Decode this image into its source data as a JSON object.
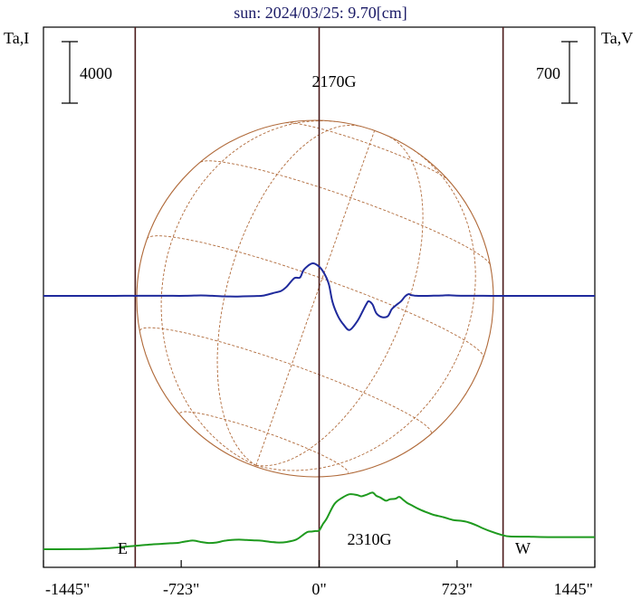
{
  "chart_data": {
    "type": "line",
    "title": "sun: 2024/03/25: 9.70[cm]",
    "left_axis_label": "Ta,I",
    "right_axis_label": "Ta,V",
    "left_scale_bar": "4000",
    "right_scale_bar": "700",
    "x_ticks": [
      {
        "value": -1445,
        "label": "-1445\""
      },
      {
        "value": -723,
        "label": "-723\""
      },
      {
        "value": 0,
        "label": "0\""
      },
      {
        "value": 723,
        "label": "723\""
      },
      {
        "value": 1445,
        "label": "1445\""
      }
    ],
    "xlim": [
      -1445,
      1445
    ],
    "limb_markers": [
      -964,
      0,
      964
    ],
    "east_label": "E",
    "west_label": "W",
    "annotations": [
      "2170G",
      "2310G"
    ],
    "grid": "heliographic disk (latitude/longitude lines)",
    "series": [
      {
        "key": "stokes_i",
        "color": "#1f2a9c",
        "x": [
          -1445,
          -1100,
          -1000,
          -950,
          -900,
          -800,
          -700,
          -620,
          -560,
          -500,
          -440,
          -400,
          -340,
          -300,
          -270,
          -230,
          -200,
          -170,
          -130,
          -100,
          -80,
          -40,
          -10,
          20,
          50,
          70,
          100,
          130,
          160,
          200,
          230,
          250,
          260,
          280,
          300,
          330,
          360,
          380,
          400,
          430,
          450,
          470,
          480,
          500,
          520,
          540,
          560,
          600,
          640,
          680,
          720,
          780,
          860,
          960,
          1000,
          1100,
          1445
        ],
        "y": [
          0,
          0,
          5,
          3,
          6,
          8,
          5,
          30,
          3,
          -30,
          -44,
          -30,
          -10,
          5,
          80,
          220,
          320,
          600,
          1150,
          1200,
          1700,
          2100,
          2000,
          1600,
          800,
          -400,
          -1350,
          -1900,
          -2220,
          -1650,
          -950,
          -480,
          -350,
          -560,
          -1130,
          -1380,
          -1320,
          -870,
          -640,
          -340,
          -40,
          120,
          60,
          20,
          0,
          -2,
          0,
          10,
          25,
          40,
          12,
          8,
          8,
          0,
          0,
          0,
          0
        ]
      },
      {
        "key": "stokes_v",
        "color": "#1e9a1e",
        "x": [
          -1445,
          -1300,
          -1200,
          -1100,
          -1000,
          -900,
          -830,
          -780,
          -740,
          -720,
          -690,
          -660,
          -620,
          -580,
          -540,
          -500,
          -460,
          -420,
          -380,
          -340,
          -300,
          -250,
          -210,
          -170,
          -120,
          -80,
          -60,
          -40,
          -20,
          0,
          20,
          40,
          80,
          120,
          160,
          200,
          220,
          250,
          280,
          300,
          320,
          350,
          370,
          400,
          420,
          440,
          460,
          490,
          520,
          560,
          600,
          650,
          700,
          740,
          780,
          820,
          860,
          900,
          960,
          1000,
          1100,
          1200,
          1445
        ],
        "y": [
          0,
          5,
          20,
          60,
          140,
          220,
          262,
          295,
          315,
          350,
          400,
          430,
          360,
          310,
          330,
          410,
          460,
          475,
          455,
          440,
          420,
          360,
          330,
          360,
          480,
          740,
          860,
          875,
          900,
          930,
          1250,
          1520,
          2240,
          2540,
          2720,
          2680,
          2620,
          2700,
          2800,
          2640,
          2560,
          2400,
          2470,
          2500,
          2590,
          2450,
          2300,
          2150,
          2000,
          1840,
          1700,
          1590,
          1450,
          1410,
          1340,
          1200,
          1030,
          880,
          700,
          630,
          620,
          600,
          600
        ]
      }
    ]
  }
}
